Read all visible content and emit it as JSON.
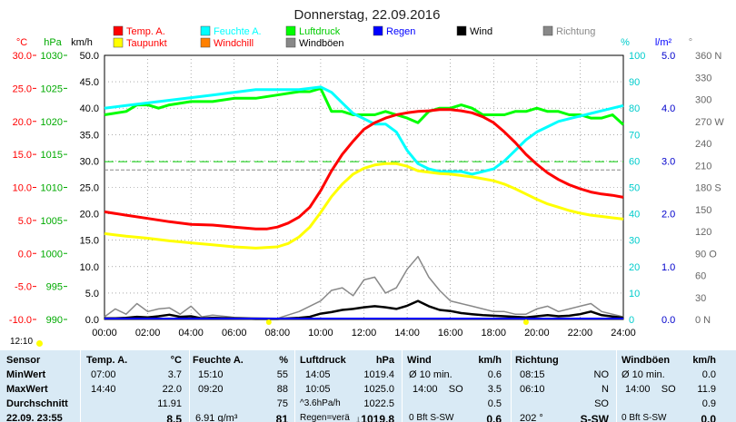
{
  "title": "Donnerstag, 22.09.2016",
  "legend": [
    {
      "label": "Temp. A.",
      "color": "#ff0000"
    },
    {
      "label": "Feuchte A.",
      "color": "#00ffff"
    },
    {
      "label": "Luftdruck",
      "color": "#00ff00"
    },
    {
      "label": "Regen",
      "color": "#0000ff"
    },
    {
      "label": "Wind",
      "color": "#000000"
    },
    {
      "label": "Richtung",
      "color": "#888888"
    },
    {
      "label": "Taupunkt",
      "color": "#ffff00"
    },
    {
      "label": "Windchill",
      "color": "#ff8000"
    },
    {
      "label": "Windböen",
      "color": "#888888"
    }
  ],
  "axis_units": {
    "temp": "°C",
    "press": "hPa",
    "wind": "km/h",
    "hum": "%",
    "rain": "l/m²",
    "dir": "°"
  },
  "axes": {
    "temp": [
      "30.0",
      "25.0",
      "20.0",
      "15.0",
      "10.0",
      "5.0",
      "0.0",
      "-5.0",
      "-10.0"
    ],
    "press": [
      "1030",
      "1025",
      "1020",
      "1015",
      "1010",
      "1005",
      "1000",
      "995",
      "990"
    ],
    "wind": [
      "50.0",
      "45.0",
      "40.0",
      "35.0",
      "30.0",
      "25.0",
      "20.0",
      "15.0",
      "10.0",
      "5.0",
      "0.0"
    ],
    "hum": [
      "100",
      "90",
      "80",
      "70",
      "60",
      "50",
      "40",
      "30",
      "20",
      "10",
      "0"
    ],
    "rain": [
      "5.0",
      "4.0",
      "3.0",
      "2.0",
      "1.0",
      "0.0"
    ],
    "dir": [
      "360 N",
      "330",
      "300",
      "270 W",
      "240",
      "210",
      "180 S",
      "150",
      "120",
      "90 O",
      "60",
      "30",
      "0 N"
    ],
    "time": [
      "00:00",
      "02:00",
      "04:00",
      "06:00",
      "08:00",
      "10:00",
      "12:00",
      "14:00",
      "16:00",
      "18:00",
      "20:00",
      "22:00",
      "24:00"
    ]
  },
  "current_time": "12:10",
  "colors": {
    "table_bg": "#d9eaf5",
    "grid": "#000000"
  },
  "chart_data": {
    "type": "line",
    "title": "Donnerstag, 22.09.2016",
    "x_unit": "hours",
    "xlim": [
      0,
      24
    ],
    "series": [
      {
        "name": "Temp. A.",
        "axis": "temp",
        "color": "#ff0000",
        "x": [
          0,
          1,
          2,
          3,
          4,
          5,
          6,
          7,
          7.5,
          8,
          8.5,
          9,
          9.5,
          10,
          10.5,
          11,
          11.5,
          12,
          12.5,
          13,
          13.5,
          14,
          14.5,
          15,
          15.5,
          16,
          16.5,
          17,
          17.5,
          18,
          18.5,
          19,
          19.5,
          20,
          20.5,
          21,
          21.5,
          22,
          22.5,
          23,
          23.5,
          24
        ],
        "y": [
          6.3,
          5.8,
          5.3,
          4.8,
          4.4,
          4.3,
          4.0,
          3.7,
          3.7,
          4.0,
          4.6,
          5.5,
          7.0,
          9.5,
          12.5,
          15.0,
          17.0,
          18.8,
          19.8,
          20.5,
          21.0,
          21.3,
          21.5,
          21.6,
          21.8,
          21.8,
          21.6,
          21.3,
          20.7,
          19.8,
          18.4,
          16.8,
          15.0,
          13.5,
          12.2,
          11.2,
          10.4,
          9.8,
          9.3,
          9.0,
          8.8,
          8.5
        ]
      },
      {
        "name": "Taupunkt",
        "axis": "temp",
        "color": "#ffff00",
        "x": [
          0,
          1,
          2,
          3,
          4,
          5,
          6,
          7,
          8,
          8.5,
          9,
          9.5,
          10,
          10.5,
          11,
          11.5,
          12,
          12.5,
          13,
          13.5,
          14,
          14.5,
          15,
          15.5,
          16,
          16.5,
          17,
          17.5,
          18,
          18.5,
          19,
          19.5,
          20,
          20.5,
          21,
          21.5,
          22,
          22.5,
          23,
          23.5,
          24
        ],
        "y": [
          3.0,
          2.6,
          2.3,
          1.9,
          1.6,
          1.3,
          1.0,
          0.8,
          1.0,
          1.5,
          2.5,
          4.0,
          6.2,
          8.6,
          10.5,
          12.0,
          12.9,
          13.4,
          13.6,
          13.6,
          13.2,
          12.5,
          12.3,
          12.1,
          12.0,
          11.8,
          11.6,
          11.3,
          11.0,
          10.5,
          9.8,
          9.0,
          8.2,
          7.5,
          7.0,
          6.5,
          6.1,
          5.8,
          5.6,
          5.4,
          5.2
        ]
      },
      {
        "name": "Feuchte A.",
        "axis": "hum",
        "color": "#00ffff",
        "x": [
          0,
          1,
          2,
          3,
          4,
          5,
          6,
          7,
          8,
          9,
          10,
          10.5,
          11,
          11.5,
          12,
          12.5,
          13,
          13.5,
          14,
          14.5,
          15,
          15.5,
          16,
          16.5,
          17,
          17.5,
          18,
          18.5,
          19,
          19.5,
          20,
          20.5,
          21,
          21.5,
          22,
          22.5,
          23,
          23.5,
          24
        ],
        "y": [
          80,
          81,
          82,
          83,
          84,
          85,
          86,
          87,
          87,
          87,
          88,
          86,
          82,
          78,
          76,
          74,
          74,
          71,
          64,
          59,
          57,
          56,
          56,
          56,
          55,
          56,
          57,
          60,
          64,
          68,
          71,
          73,
          75,
          76,
          77,
          78,
          79,
          80,
          81
        ]
      },
      {
        "name": "Luftdruck",
        "axis": "press",
        "color": "#00ff00",
        "x": [
          0,
          1,
          1.5,
          2,
          2.5,
          3,
          4,
          5,
          6,
          7,
          8,
          9,
          9.5,
          10,
          10.5,
          11,
          11.5,
          12,
          12.5,
          13,
          13.5,
          14,
          14.5,
          15,
          15.5,
          16,
          16.5,
          17,
          17.5,
          18,
          18.5,
          19,
          19.5,
          20,
          20.5,
          21,
          21.5,
          22,
          22.5,
          23,
          23.5,
          24
        ],
        "y": [
          1021.0,
          1021.5,
          1022.5,
          1022.5,
          1022.0,
          1022.5,
          1023.0,
          1023.0,
          1023.5,
          1023.5,
          1024.0,
          1024.5,
          1024.5,
          1025.0,
          1021.5,
          1021.5,
          1021.0,
          1021.0,
          1021.0,
          1021.5,
          1021.0,
          1020.5,
          1019.8,
          1021.5,
          1022.0,
          1022.0,
          1022.5,
          1022.0,
          1021.0,
          1021.0,
          1021.0,
          1021.5,
          1021.5,
          1022.0,
          1021.5,
          1021.5,
          1021.0,
          1021.0,
          1020.5,
          1020.5,
          1021.0,
          1019.5
        ]
      },
      {
        "name": "Wind",
        "axis": "wind",
        "color": "#000000",
        "x": [
          0,
          0.5,
          1,
          1.5,
          2,
          2.5,
          3,
          3.5,
          4,
          4.5,
          5,
          6,
          7,
          8,
          9,
          9.5,
          10,
          10.5,
          11,
          11.5,
          12,
          12.5,
          13,
          13.5,
          14,
          14.5,
          15,
          15.5,
          16,
          16.5,
          17,
          17.5,
          18,
          18.5,
          19,
          19.5,
          20,
          20.5,
          21,
          21.5,
          22,
          22.5,
          23,
          24
        ],
        "y": [
          0.2,
          0.2,
          0.3,
          0.5,
          0.4,
          0.6,
          0.9,
          0.5,
          0.6,
          0.2,
          0.3,
          0.2,
          0.1,
          0.1,
          0.3,
          0.5,
          1.1,
          1.4,
          1.8,
          2.0,
          2.3,
          2.5,
          2.3,
          2.0,
          2.6,
          3.5,
          2.5,
          1.8,
          1.6,
          1.2,
          1.0,
          0.8,
          0.7,
          0.6,
          0.5,
          0.4,
          0.6,
          0.8,
          0.6,
          0.7,
          1.0,
          1.5,
          0.8,
          0.3
        ]
      },
      {
        "name": "Windböen",
        "axis": "wind",
        "color": "#888888",
        "x": [
          0,
          0.5,
          1,
          1.5,
          2,
          2.5,
          3,
          3.5,
          4,
          4.5,
          5,
          6,
          7,
          8,
          9,
          9.5,
          10,
          10.5,
          11,
          11.5,
          12,
          12.5,
          13,
          13.5,
          14,
          14.5,
          15,
          15.5,
          16,
          16.5,
          17,
          17.5,
          18,
          18.5,
          19,
          19.5,
          20,
          20.5,
          21,
          21.5,
          22,
          22.5,
          23,
          24
        ],
        "y": [
          0.5,
          2.0,
          1.0,
          3.0,
          1.5,
          2.0,
          2.2,
          1.0,
          2.5,
          0.5,
          0.8,
          0.4,
          0.3,
          0.2,
          1.5,
          2.5,
          3.5,
          5.5,
          6.0,
          4.5,
          7.5,
          8.0,
          5.0,
          6.0,
          9.5,
          11.9,
          8.0,
          5.5,
          3.5,
          3.0,
          2.5,
          2.0,
          1.5,
          1.5,
          1.0,
          1.0,
          2.0,
          2.5,
          1.5,
          2.0,
          2.5,
          3.0,
          1.5,
          0.5
        ]
      }
    ]
  },
  "table": {
    "sensor": {
      "header": "Sensor",
      "rows": [
        "MinWert",
        "MaxWert",
        "Durchschnitt",
        "22.09. 23:55"
      ]
    },
    "temp": {
      "header": "Temp. A.",
      "unit": "°C",
      "rows": [
        [
          "07:00",
          "3.7"
        ],
        [
          "14:40",
          "22.0"
        ],
        [
          "",
          "11.91"
        ],
        [
          "",
          "8.5"
        ]
      ]
    },
    "feuchte": {
      "header": "Feuchte A.",
      "unit": "%",
      "rows": [
        [
          "15:10",
          "55"
        ],
        [
          "09:20",
          "88"
        ],
        [
          "",
          "75"
        ],
        [
          "6.91 g/m³",
          "81"
        ]
      ]
    },
    "druck": {
      "header": "Luftdruck",
      "unit": "hPa",
      "rows": [
        [
          "14:05",
          "1019.4"
        ],
        [
          "10:05",
          "1025.0"
        ],
        [
          "^3.6hPa/h",
          "1022.5"
        ],
        [
          "Regen=verä",
          "↓1019.8"
        ]
      ]
    },
    "wind": {
      "header": "Wind",
      "unit": "km/h",
      "rows": [
        [
          "Ø 10 min.",
          "0.6"
        ],
        [
          "14:00    SO",
          "3.5"
        ],
        [
          "",
          "0.5"
        ],
        [
          "0 Bft S-SW",
          "0.6"
        ]
      ]
    },
    "richtung": {
      "header": "Richtung",
      "rows": [
        [
          "08:15",
          "NO"
        ],
        [
          "06:10",
          "N"
        ],
        [
          "",
          "SO"
        ],
        [
          "202 °",
          "S-SW"
        ]
      ]
    },
    "boeen": {
      "header": "Windböen",
      "unit": "km/h",
      "rows": [
        [
          "Ø 10 min.",
          "0.0"
        ],
        [
          "14:00    SO",
          "11.9"
        ],
        [
          "",
          "0.9"
        ],
        [
          "0 Bft S-SW",
          "0.0"
        ]
      ]
    }
  }
}
